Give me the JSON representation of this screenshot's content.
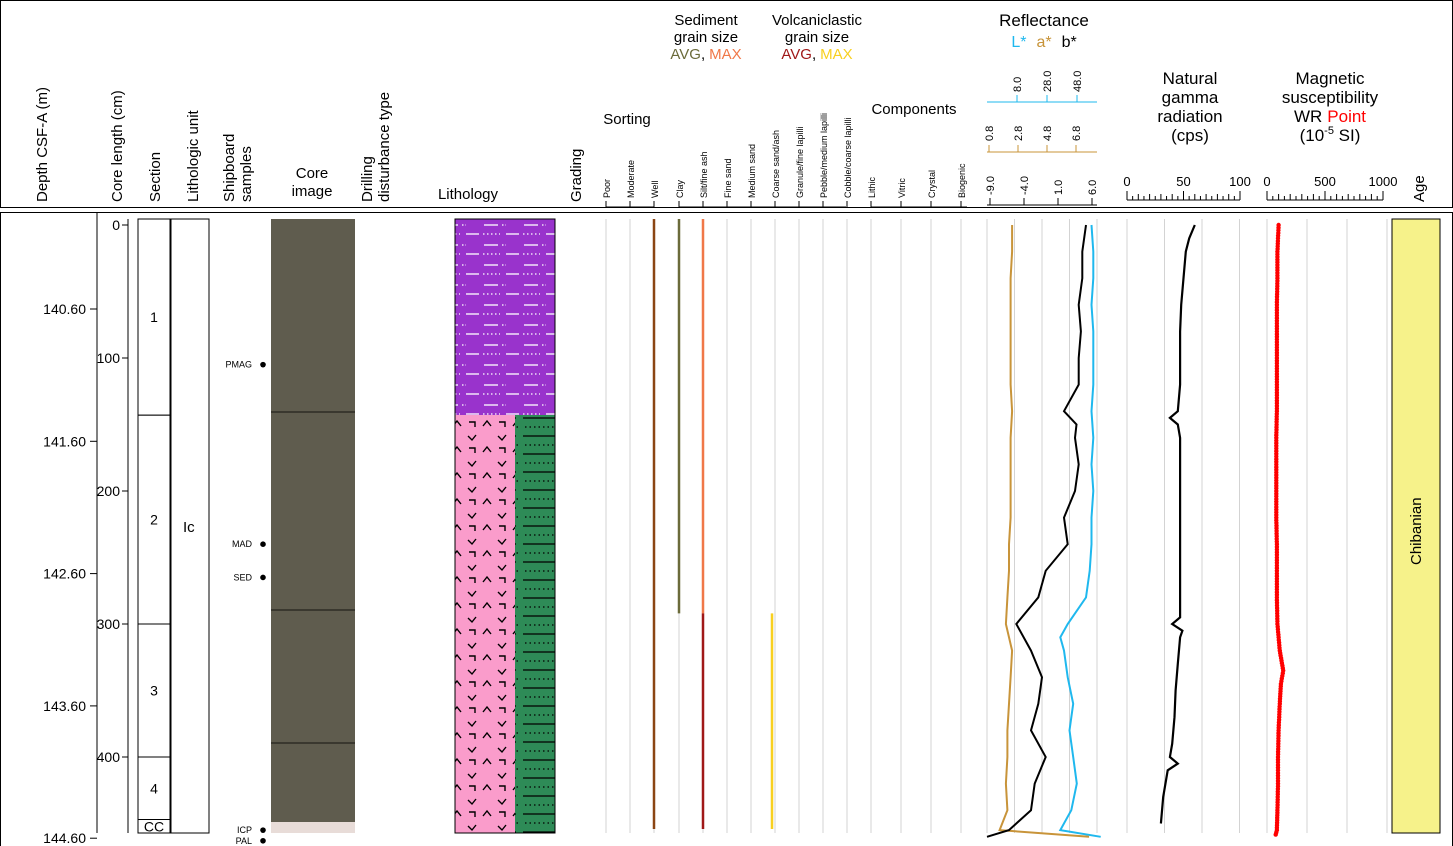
{
  "headers": {
    "depth": "Depth CSF-A (m)",
    "core_length": "Core length (cm)",
    "section": "Section",
    "lith_unit": "Lithologic unit",
    "samples": [
      "Shipboard",
      "samples"
    ],
    "core_image": [
      "Core",
      "image"
    ],
    "drilling": [
      "Drilling",
      "disturbance type"
    ],
    "lithology": "Lithology",
    "grading": "Grading",
    "sorting": "Sorting",
    "sorting_ticks": [
      "Poor",
      "Moderate",
      "Well"
    ],
    "sed_grain": [
      "Sediment",
      "grain size"
    ],
    "sed_avg": "AVG",
    "sed_max": "MAX",
    "volc_grain": [
      "Volcaniclastic",
      "grain size"
    ],
    "volc_avg": "AVG",
    "volc_max": "MAX",
    "comma": ",",
    "grain_ticks": [
      "Clay",
      "Silt/fine ash",
      "Fine sand",
      "Medium sand",
      "Coarse sand/ash",
      "Granule/fine lapilli",
      "Pebble/medium lapilli",
      "Cobble/coarse lapilli"
    ],
    "components": "Components",
    "component_ticks": [
      "Lithic",
      "Vitric",
      "Crystal",
      "Biogenic"
    ],
    "reflectance": "Reflectance",
    "refl_L": "L*",
    "refl_a": "a*",
    "refl_b": "b*",
    "l_ticks": [
      "8.0",
      "28.0",
      "48.0"
    ],
    "a_ticks": [
      "0.8",
      "2.8",
      "4.8",
      "6.8"
    ],
    "b_ticks": [
      "-9.0",
      "-4.0",
      "1.0",
      "6.0"
    ],
    "ngr": [
      "Natural",
      "gamma",
      "radiation",
      "(cps)"
    ],
    "ngr_ticks": [
      "0",
      "50",
      "100"
    ],
    "ms": [
      "Magnetic",
      "susceptibility"
    ],
    "ms_line3_a": "WR",
    "ms_line3_b": "Point",
    "ms_line4_a": "(10",
    "ms_line4_exp": "-5",
    "ms_line4_b": " SI)",
    "ms_ticks": [
      "0",
      "500",
      "1000"
    ],
    "age": "Age"
  },
  "colors": {
    "L": "#1fb8ee",
    "a": "#c8943a",
    "b": "#000000",
    "sed_avg": "#6b6b3a",
    "sed_max": "#f07848",
    "volc_avg": "#a01818",
    "volc_max": "#f8d020",
    "ms_point": "#ff0000",
    "age_fill": "#f6f28a",
    "lith_purple": "#9933cc",
    "lith_pink": "#fa9ccb",
    "lith_green": "#2e8b57",
    "core_image": "#59564a",
    "sorting_line": "#8b4513"
  },
  "depth_axis": {
    "ticks": [
      "140.60",
      "141.60",
      "142.60",
      "143.60",
      "144.60"
    ]
  },
  "core_length_axis": {
    "ticks": [
      "0",
      "100",
      "200",
      "300",
      "400"
    ]
  },
  "sections": [
    {
      "label": "1",
      "top_cm": 0,
      "bottom_cm": 143
    },
    {
      "label": "2",
      "top_cm": 143,
      "bottom_cm": 300
    },
    {
      "label": "3",
      "top_cm": 300,
      "bottom_cm": 400
    },
    {
      "label": "4",
      "top_cm": 400,
      "bottom_cm": 447
    },
    {
      "label": "CC",
      "top_cm": 447,
      "bottom_cm": 460
    }
  ],
  "lithologic_unit": {
    "label": "Ic"
  },
  "samples": [
    {
      "label": "PMAG",
      "cm": 105
    },
    {
      "label": "MAD",
      "cm": 240
    },
    {
      "label": "SED",
      "cm": 265
    },
    {
      "label": "ICP",
      "cm": 455
    },
    {
      "label": "PAL",
      "cm": 463
    }
  ],
  "age": {
    "label": "Chibanian"
  },
  "chart_data": [
    {
      "type": "line",
      "name": "reflectance",
      "depth_axis": "core length (cm)",
      "series": [
        {
          "name": "L*",
          "depth_cm": [
            0,
            20,
            40,
            60,
            80,
            100,
            120,
            140,
            160,
            180,
            200,
            220,
            240,
            260,
            280,
            300,
            310,
            320,
            340,
            360,
            380,
            400,
            420,
            440,
            455,
            460
          ],
          "values": [
            45,
            46,
            46,
            45,
            46,
            46,
            46,
            45,
            46,
            45,
            46,
            45,
            45,
            44,
            42,
            32,
            28,
            30,
            32,
            35,
            33,
            35,
            37,
            34,
            28,
            50
          ]
        },
        {
          "name": "a*",
          "depth_cm": [
            0,
            20,
            40,
            60,
            80,
            100,
            120,
            140,
            160,
            180,
            200,
            220,
            240,
            260,
            280,
            300,
            320,
            340,
            360,
            380,
            400,
            420,
            440,
            455,
            460
          ],
          "values": [
            1.6,
            1.6,
            1.5,
            1.5,
            1.5,
            1.5,
            1.5,
            1.6,
            1.5,
            1.5,
            1.5,
            1.5,
            1.4,
            1.4,
            1.3,
            1.2,
            1.6,
            1.5,
            1.4,
            1.3,
            1.3,
            1.2,
            1.3,
            0.8,
            6.5
          ]
        },
        {
          "name": "b*",
          "depth_cm": [
            0,
            20,
            40,
            60,
            80,
            100,
            120,
            140,
            150,
            160,
            180,
            200,
            220,
            240,
            260,
            280,
            300,
            320,
            340,
            360,
            380,
            400,
            420,
            440,
            455,
            460
          ],
          "values": [
            4.5,
            4.0,
            4.0,
            3.5,
            3.8,
            3.5,
            3.5,
            1.5,
            3.2,
            3.0,
            3.5,
            3.0,
            1.5,
            2.0,
            -1.0,
            -2.0,
            -5.0,
            -3.0,
            -1.5,
            -2.0,
            -3.0,
            -1.0,
            -2.5,
            -3.0,
            -6.0,
            -9.0
          ]
        }
      ],
      "axes": {
        "L": [
          -12,
          48
        ],
        "a": [
          0,
          7
        ],
        "b": [
          -9,
          6
        ]
      }
    },
    {
      "type": "line",
      "name": "natural gamma radiation",
      "depth_cm": [
        0,
        10,
        20,
        40,
        60,
        80,
        100,
        120,
        140,
        145,
        150,
        160,
        180,
        200,
        220,
        240,
        260,
        280,
        295,
        300,
        305,
        310,
        330,
        350,
        370,
        390,
        400,
        405,
        410,
        430,
        450
      ],
      "values": [
        60,
        55,
        52,
        50,
        48,
        47,
        47,
        47,
        45,
        38,
        45,
        47,
        47,
        47,
        47,
        47,
        47,
        47,
        47,
        40,
        49,
        47,
        45,
        43,
        42,
        40,
        38,
        45,
        36,
        32,
        30
      ],
      "xlim": [
        0,
        100
      ]
    },
    {
      "type": "scatter",
      "name": "magnetic susceptibility WR point",
      "depth_cm": [
        0,
        10,
        20,
        40,
        60,
        80,
        100,
        120,
        140,
        160,
        180,
        200,
        220,
        240,
        260,
        280,
        300,
        320,
        335,
        345,
        360,
        380,
        400,
        420,
        440,
        455,
        460
      ],
      "values": [
        100,
        95,
        90,
        90,
        85,
        85,
        85,
        85,
        85,
        80,
        80,
        80,
        80,
        85,
        85,
        85,
        90,
        110,
        140,
        120,
        110,
        100,
        95,
        95,
        90,
        85,
        70
      ],
      "xlim": [
        0,
        1000
      ]
    }
  ]
}
